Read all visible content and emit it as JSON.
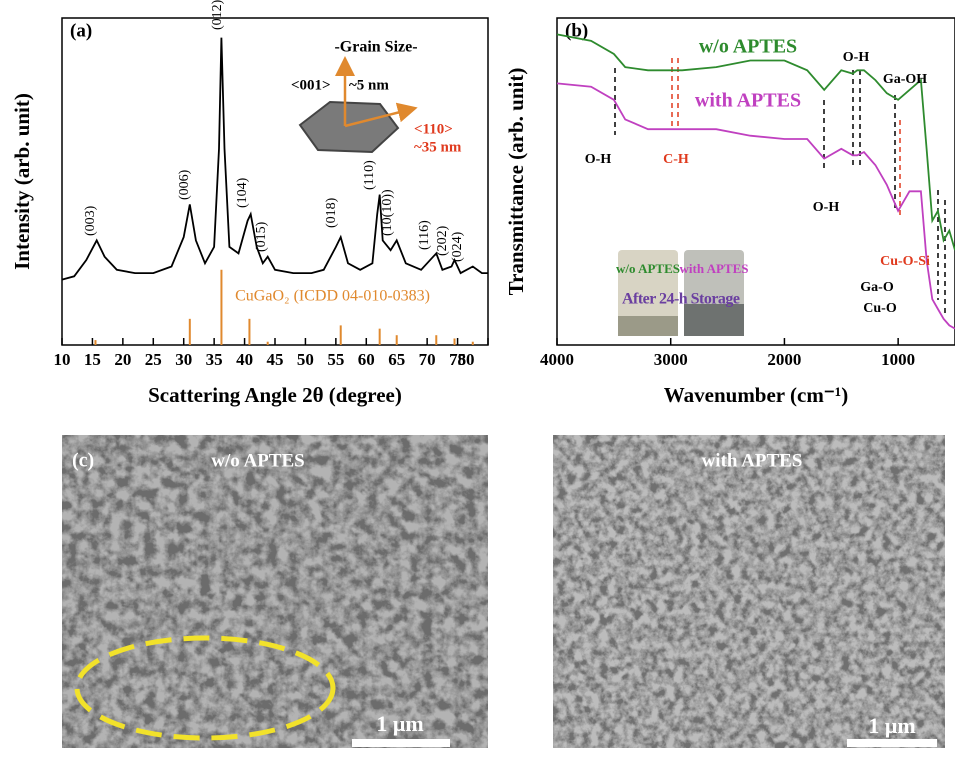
{
  "chart_data": [
    {
      "type": "line",
      "panel_label": "(a)",
      "xlabel": "Scattering Angle 2θ (degree)",
      "ylabel": "Intensity (arb. unit)",
      "xlim": [
        10,
        80
      ],
      "xticks": [
        10,
        15,
        20,
        25,
        30,
        35,
        40,
        45,
        50,
        55,
        60,
        65,
        70,
        75,
        80
      ],
      "ylim": [
        0,
        100
      ],
      "color": "#000000",
      "x": [
        10,
        12,
        14,
        15.7,
        17,
        19,
        22,
        25,
        28,
        30,
        31,
        32,
        33.5,
        35,
        35.8,
        36.2,
        36.7,
        37.5,
        39,
        40.5,
        41,
        42,
        43,
        43.8,
        45,
        48,
        51,
        53,
        55,
        55.8,
        57,
        59,
        61,
        61.8,
        62.2,
        62.7,
        64,
        65,
        66.5,
        69,
        71,
        71.5,
        72.5,
        74,
        74.5,
        75.5,
        77.5,
        79,
        80
      ],
      "values": [
        20,
        21,
        26,
        32,
        27,
        23,
        22,
        22,
        24,
        33,
        43,
        32,
        25,
        30,
        60,
        94,
        60,
        30,
        28,
        38,
        40,
        30,
        25,
        27,
        23,
        22,
        22,
        23,
        30,
        33,
        25,
        23,
        25,
        40,
        46,
        32,
        29,
        32,
        25,
        23,
        27,
        28,
        23,
        24,
        26,
        22,
        24,
        22,
        22
      ],
      "peak_labels": [
        "(003)",
        "(006)",
        "(012)",
        "(104)",
        "(015)",
        "(018)",
        "(110)",
        "(10(10))",
        "(116)",
        "(202)",
        "(024)"
      ],
      "reference": {
        "name": "CuGaO₂ (ICDD 04-010-0383)",
        "color": "#e0892e",
        "x": [
          15.5,
          31,
          36.2,
          40.8,
          43.8,
          55.8,
          62.2,
          65,
          71.5,
          74.5,
          77.5
        ],
        "values": [
          1.5,
          8,
          23,
          8,
          1,
          6,
          5,
          3,
          3,
          2,
          1
        ]
      },
      "inset": {
        "title": "-Grain Size-",
        "dir_c": "<001>",
        "size_c": "~5 nm",
        "dir_a": "<110>",
        "size_a": "~35 nm"
      }
    },
    {
      "type": "line",
      "panel_label": "(b)",
      "xlabel": "Wavenumber (cm⁻¹)",
      "ylabel": "Transmittance (arb. unit)",
      "xlim": [
        4000,
        500
      ],
      "xticks": [
        4000,
        3000,
        2000,
        1000
      ],
      "ylim": [
        0,
        100
      ],
      "x": [
        4000,
        3700,
        3500,
        3400,
        3200,
        2900,
        2600,
        2300,
        2000,
        1800,
        1650,
        1500,
        1400,
        1360,
        1300,
        1200,
        1100,
        1000,
        900,
        800,
        750,
        700,
        650,
        600,
        550,
        500
      ],
      "series": [
        {
          "name": "w/o APTES",
          "color": "#2e8b2e",
          "values": [
            95,
            93,
            89,
            85,
            84,
            84,
            85,
            87,
            87,
            84,
            78,
            84,
            83,
            84,
            84,
            81,
            77,
            75,
            78,
            81,
            60,
            38,
            41,
            32,
            35,
            29
          ]
        },
        {
          "name": "with APTES",
          "color": "#c040c0",
          "values": [
            80,
            79,
            75,
            69,
            66,
            66,
            66,
            64,
            63,
            63,
            57,
            60,
            58,
            58,
            59,
            55,
            49,
            41,
            47,
            47,
            26,
            14,
            11,
            8,
            6,
            5
          ]
        }
      ],
      "annotations": [
        "O-H",
        "C-H",
        "O-H",
        "O-H",
        "Ga-OH",
        "Cu-O-Si",
        "Ga-O",
        "Cu-O"
      ],
      "inset": {
        "left": "w/o APTES",
        "right": "with APTES",
        "caption": "After 24-h Storage"
      }
    }
  ],
  "sem_panels": {
    "panel_label": "(c)",
    "left_title": "w/o APTES",
    "right_title": "with APTES",
    "left_scale": "1 μm",
    "right_scale": "1 μm"
  }
}
